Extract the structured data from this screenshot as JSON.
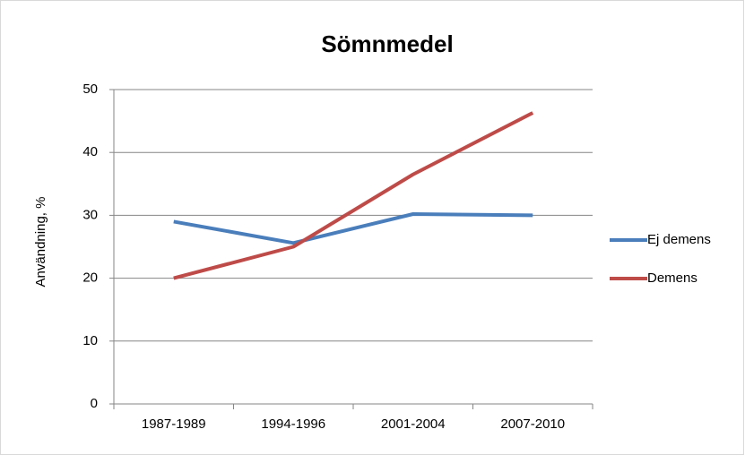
{
  "chart_data": {
    "type": "line",
    "title": "Sömnmedel",
    "ylabel": "Användning, %",
    "categories": [
      "1987-1989",
      "1994-1996",
      "2001-2004",
      "2007-2010"
    ],
    "series": [
      {
        "name": "Ej demens",
        "color": "#4a7ebb",
        "values": [
          29,
          25.6,
          30.2,
          30
        ]
      },
      {
        "name": "Demens",
        "color": "#be4b48",
        "values": [
          20,
          25,
          36.5,
          46.3
        ]
      }
    ],
    "ylim": [
      0,
      50
    ],
    "yticks": [
      0,
      10,
      20,
      30,
      40,
      50
    ],
    "grid": true,
    "legend": "right"
  }
}
